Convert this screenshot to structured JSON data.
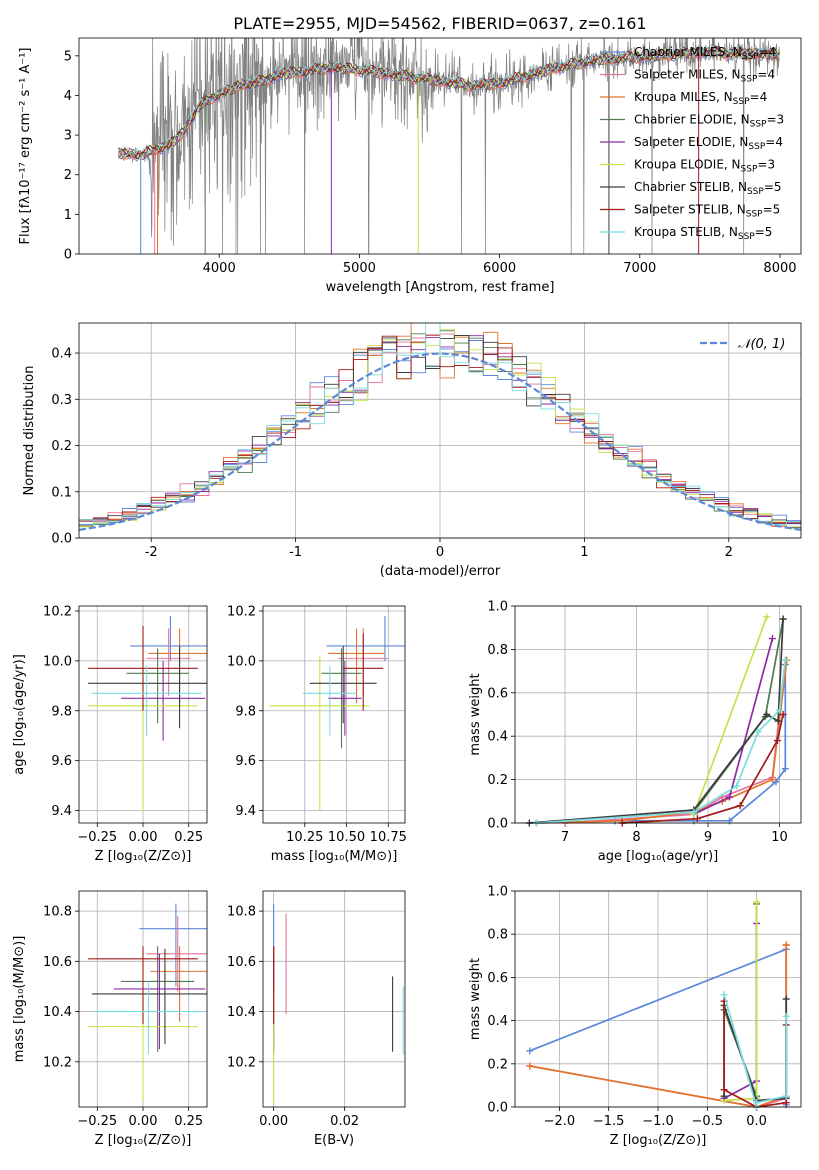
{
  "figure": {
    "title": "PLATE=2955, MJD=54562, FIBERID=0637, z=0.161"
  },
  "series": [
    {
      "name": "Chabrier MILES, N",
      "sub": "SSP",
      "suffix": "=4",
      "color": "#5b88d9"
    },
    {
      "name": "Salpeter MILES, N",
      "sub": "SSP",
      "suffix": "=4",
      "color": "#e8729a"
    },
    {
      "name": "Kroupa MILES, N",
      "sub": "SSP",
      "suffix": "=4",
      "color": "#e2742c"
    },
    {
      "name": "Chabrier ELODIE, N",
      "sub": "SSP",
      "suffix": "=3",
      "color": "#4f7a4f"
    },
    {
      "name": "Salpeter ELODIE, N",
      "sub": "SSP",
      "suffix": "=4",
      "color": "#8e2aa6"
    },
    {
      "name": "Kroupa ELODIE, N",
      "sub": "SSP",
      "suffix": "=3",
      "color": "#c5e34a"
    },
    {
      "name": "Chabrier STELIB, N",
      "sub": "SSP",
      "suffix": "=5",
      "color": "#3d3d3d"
    },
    {
      "name": "Salpeter STELIB, N",
      "sub": "SSP",
      "suffix": "=5",
      "color": "#a21a1a"
    },
    {
      "name": "Kroupa STELIB, N",
      "sub": "SSP",
      "suffix": "=5",
      "color": "#79dde0"
    }
  ],
  "chart_data": [
    {
      "id": "spectrum",
      "type": "line",
      "xlabel": "wavelength [Angstrom, rest frame]",
      "ylabel": "Flux [fλ10⁻¹⁷ erg cm⁻² s⁻¹ A⁻¹]",
      "xlim": [
        3000,
        8150
      ],
      "ylim": [
        0,
        5.45
      ],
      "xticks": [
        4000,
        5000,
        6000,
        7000,
        8000
      ],
      "yticks": [
        0,
        1,
        2,
        3,
        4,
        5
      ],
      "data_color": "#808080",
      "data_range": [
        3280,
        8000
      ],
      "continuum": {
        "x": [
          3280,
          3450,
          3550,
          3650,
          3750,
          3850,
          3950,
          4050,
          4150,
          4300,
          4450,
          4600,
          4800,
          5000,
          5200,
          5400,
          5600,
          5800,
          6000,
          6200,
          6400,
          6550,
          6700,
          6900,
          7100,
          7300,
          7500,
          7700,
          7900,
          8000
        ],
        "y": [
          2.55,
          2.5,
          2.65,
          2.75,
          3.1,
          3.7,
          3.95,
          4.1,
          4.25,
          4.35,
          4.55,
          4.6,
          4.7,
          4.65,
          4.55,
          4.45,
          4.35,
          4.25,
          4.3,
          4.5,
          4.7,
          4.8,
          4.9,
          4.95,
          5.0,
          5.05,
          5.1,
          5.05,
          5.05,
          5.0
        ]
      }
    },
    {
      "id": "residuals",
      "type": "histogram",
      "xlabel": "(data-model)/error",
      "ylabel": "Normed distribution",
      "xlim": [
        -2.5,
        2.5
      ],
      "ylim": [
        0,
        0.465
      ],
      "xticks": [
        -2,
        -1,
        0,
        1,
        2
      ],
      "yticks": [
        0.0,
        0.1,
        0.2,
        0.3,
        0.4
      ],
      "bin_width": 0.1,
      "gaussian_label": "𝒩(0, 1)",
      "gaussian_color": "#5b88d9",
      "legend": "top-right"
    },
    {
      "id": "age_vs_Z",
      "type": "errorbar",
      "xlabel": "Z [log₁₀(Z/Z⊙)]",
      "ylabel": "age  [log₁₀(age/yr)]",
      "xlim": [
        -0.35,
        0.35
      ],
      "ylim": [
        9.35,
        10.22
      ],
      "xticks": [
        -0.25,
        0.0,
        0.25
      ],
      "xticklabels": [
        "−0.25",
        "0.00",
        "0.25"
      ],
      "yticks": [
        9.4,
        9.6,
        9.8,
        10.0,
        10.2
      ],
      "points": [
        {
          "x": 0.15,
          "y": 10.06,
          "xerr": 0.22,
          "yerr": [
            0.06,
            0.12
          ]
        },
        {
          "x": 0.14,
          "y": 10.01,
          "xerr": 0.12,
          "yerr": [
            0.15,
            0.12
          ]
        },
        {
          "x": 0.2,
          "y": 10.03,
          "xerr": 0.17,
          "yerr": [
            0.2,
            0.1
          ]
        },
        {
          "x": 0.08,
          "y": 9.95,
          "xerr": 0.17,
          "yerr": [
            0.2,
            0.1
          ]
        },
        {
          "x": 0.11,
          "y": 9.85,
          "xerr": 0.23,
          "yerr": [
            0.17,
            0.15
          ]
        },
        {
          "x": 0.0,
          "y": 9.82,
          "xerr": 0.3,
          "yerr": [
            0.42,
            0.2
          ]
        },
        {
          "x": 0.2,
          "y": 9.91,
          "xerr": 0.5,
          "yerr": [
            0.18,
            0.15
          ]
        },
        {
          "x": 0.0,
          "y": 9.97,
          "xerr": 0.3,
          "yerr": [
            0.17,
            0.17
          ]
        },
        {
          "x": 0.02,
          "y": 9.87,
          "xerr": 0.3,
          "yerr": [
            0.17,
            0.11
          ]
        }
      ]
    },
    {
      "id": "age_vs_mass",
      "type": "errorbar",
      "xlabel": "mass [log₁₀(M/M⊙)]",
      "xlim": [
        10.0,
        10.85
      ],
      "ylim": [
        9.35,
        10.22
      ],
      "xticks": [
        10.25,
        10.5,
        10.75
      ],
      "xticklabels": [
        "10.25",
        "10.50",
        "10.75"
      ],
      "yticks": [
        9.4,
        9.6,
        9.8,
        10.0,
        10.2
      ],
      "points": [
        {
          "x": 10.73,
          "y": 10.06,
          "xerr": 0.35,
          "yerr": [
            0.06,
            0.12
          ]
        },
        {
          "x": 10.6,
          "y": 10.01,
          "xerr": 0.15,
          "yerr": [
            0.15,
            0.12
          ]
        },
        {
          "x": 10.56,
          "y": 10.03,
          "xerr": 0.17,
          "yerr": [
            0.2,
            0.1
          ]
        },
        {
          "x": 10.47,
          "y": 9.95,
          "xerr": 0.12,
          "yerr": [
            0.3,
            0.1
          ]
        },
        {
          "x": 10.49,
          "y": 9.85,
          "xerr": 0.1,
          "yerr": [
            0.15,
            0.15
          ]
        },
        {
          "x": 10.34,
          "y": 9.82,
          "xerr": 0.3,
          "yerr": [
            0.42,
            0.2
          ]
        },
        {
          "x": 10.48,
          "y": 9.91,
          "xerr": 0.2,
          "yerr": [
            0.16,
            0.15
          ]
        },
        {
          "x": 10.6,
          "y": 9.97,
          "xerr": 0.12,
          "yerr": [
            0.17,
            0.14
          ]
        },
        {
          "x": 10.4,
          "y": 9.87,
          "xerr": 0.16,
          "yerr": [
            0.17,
            0.11
          ]
        }
      ]
    },
    {
      "id": "weight_vs_age",
      "type": "line",
      "xlabel": "age  [log₁₀(age/yr)]",
      "ylabel": "mass weight",
      "xlim": [
        6.3,
        10.3
      ],
      "ylim": [
        0,
        1.0
      ],
      "xticks": [
        7,
        8,
        9,
        10
      ],
      "yticks": [
        0.0,
        0.2,
        0.4,
        0.6,
        0.8,
        1.0
      ],
      "lines": [
        {
          "x": [
            6.6,
            7.7,
            8.8,
            9.3,
            9.95,
            10.08,
            10.08
          ],
          "y": [
            0.0,
            0.01,
            0.01,
            0.01,
            0.19,
            0.25,
            0.73
          ]
        },
        {
          "x": [
            7.0,
            8.8,
            9.2,
            9.9,
            10.08
          ],
          "y": [
            0.0,
            0.04,
            0.12,
            0.21,
            0.75
          ]
        },
        {
          "x": [
            6.6,
            7.8,
            8.8,
            9.2,
            9.9,
            10.1
          ],
          "y": [
            0.0,
            0.01,
            0.05,
            0.1,
            0.2,
            0.75
          ]
        },
        {
          "x": [
            8.8,
            9.8,
            10.05
          ],
          "y": [
            0.05,
            0.49,
            0.94
          ]
        },
        {
          "x": [
            8.8,
            9.3,
            9.9
          ],
          "y": [
            0.04,
            0.12,
            0.85
          ]
        },
        {
          "x": [
            8.8,
            9.82
          ],
          "y": [
            0.04,
            0.95
          ]
        },
        {
          "x": [
            6.5,
            8.8,
            9.82,
            9.98,
            10.05
          ],
          "y": [
            0.0,
            0.06,
            0.5,
            0.47,
            0.94
          ]
        },
        {
          "x": [
            7.8,
            8.85,
            9.45,
            9.97,
            10.05
          ],
          "y": [
            0.0,
            0.02,
            0.08,
            0.38,
            0.5
          ]
        },
        {
          "x": [
            6.6,
            8.8,
            9.4,
            9.7,
            10.0,
            10.08
          ],
          "y": [
            0.0,
            0.05,
            0.17,
            0.42,
            0.52,
            0.75
          ]
        }
      ]
    },
    {
      "id": "mass_vs_Z",
      "type": "errorbar",
      "xlabel": "Z [log₁₀(Z/Z⊙)]",
      "ylabel": "mass [log₁₀(M/M⊙)]",
      "xlim": [
        -0.35,
        0.35
      ],
      "ylim": [
        10.02,
        10.88
      ],
      "xticks": [
        -0.25,
        0.0,
        0.25
      ],
      "xticklabels": [
        "−0.25",
        "0.00",
        "0.25"
      ],
      "yticks": [
        10.2,
        10.4,
        10.6,
        10.8
      ],
      "points": [
        {
          "x": 0.18,
          "y": 10.73,
          "xerr": 0.2,
          "yerr": [
            0.23,
            0.1
          ]
        },
        {
          "x": 0.19,
          "y": 10.63,
          "xerr": 0.17,
          "yerr": [
            0.15,
            0.15
          ]
        },
        {
          "x": 0.2,
          "y": 10.56,
          "xerr": 0.16,
          "yerr": [
            0.2,
            0.1
          ]
        },
        {
          "x": 0.08,
          "y": 10.52,
          "xerr": 0.2,
          "yerr": [
            0.28,
            0.14
          ]
        },
        {
          "x": 0.09,
          "y": 10.49,
          "xerr": 0.25,
          "yerr": [
            0.24,
            0.14
          ]
        },
        {
          "x": -0.0,
          "y": 10.34,
          "xerr": 0.3,
          "yerr": [
            0.3,
            0.16
          ]
        },
        {
          "x": 0.12,
          "y": 10.47,
          "xerr": 0.4,
          "yerr": [
            0.2,
            0.18
          ]
        },
        {
          "x": -0.0,
          "y": 10.61,
          "xerr": 0.3,
          "yerr": [
            0.26,
            0.05
          ]
        },
        {
          "x": 0.03,
          "y": 10.4,
          "xerr": 0.3,
          "yerr": [
            0.17,
            0.12
          ]
        }
      ]
    },
    {
      "id": "mass_vs_EBV",
      "type": "errorbar",
      "xlabel": "E(B-V)",
      "xlim": [
        -0.003,
        0.037
      ],
      "ylim": [
        10.02,
        10.88
      ],
      "xticks": [
        0.0,
        0.02
      ],
      "xticklabels": [
        "0.00",
        "0.02"
      ],
      "yticks": [
        10.2,
        10.4,
        10.6,
        10.8
      ],
      "points": [
        {
          "x": 0.0,
          "y": 10.73,
          "xerr": 0.0,
          "yerr": [
            0.23,
            0.1
          ]
        },
        {
          "x": 0.0035,
          "y": 10.63,
          "xerr": 0.0,
          "yerr": [
            0.24,
            0.16
          ]
        },
        {
          "x": 0.0,
          "y": 10.56,
          "xerr": 0.0,
          "yerr": [
            0.2,
            0.1
          ]
        },
        {
          "x": 0.0,
          "y": 10.52,
          "xerr": 0.0,
          "yerr": [
            0.28,
            0.14
          ]
        },
        {
          "x": 0.0,
          "y": 10.49,
          "xerr": 0.0,
          "yerr": [
            0.24,
            0.14
          ]
        },
        {
          "x": 0.0,
          "y": 10.34,
          "xerr": 0.0,
          "yerr": [
            0.31,
            0.16
          ]
        },
        {
          "x": 0.0335,
          "y": 10.39,
          "xerr": 0.0,
          "yerr": [
            0.15,
            0.15
          ]
        },
        {
          "x": 0.0,
          "y": 10.5,
          "xerr": 0.0,
          "yerr": [
            0.15,
            0.16
          ]
        },
        {
          "x": 0.0365,
          "y": 10.37,
          "xerr": 0.0,
          "yerr": [
            0.14,
            0.13
          ]
        }
      ]
    },
    {
      "id": "weight_vs_Z",
      "type": "line",
      "xlabel": "Z [log₁₀(Z/Z⊙)]",
      "ylabel": "mass weight",
      "xlim": [
        -2.45,
        0.45
      ],
      "ylim": [
        0,
        1.0
      ],
      "xticks": [
        -2.0,
        -1.5,
        -1.0,
        -0.5,
        0.0
      ],
      "xticklabels": [
        "−2.0",
        "−1.5",
        "−1.0",
        "−0.5",
        "0.0"
      ],
      "yticks": [
        0.0,
        0.2,
        0.4,
        0.6,
        0.8,
        1.0
      ],
      "lines": [
        {
          "x": [
            -2.3,
            0.3,
            0.3
          ],
          "y": [
            0.26,
            0.73,
            0.01
          ]
        },
        {
          "x": [
            -2.3,
            0.0,
            0.3,
            0.3
          ],
          "y": [
            0.19,
            0.0,
            0.04,
            0.75
          ]
        },
        {
          "x": [
            -2.3,
            0.0,
            0.3,
            0.3
          ],
          "y": [
            0.19,
            0.0,
            0.05,
            0.75
          ]
        },
        {
          "x": [
            -0.33,
            0.0,
            0.0
          ],
          "y": [
            0.45,
            0.05,
            0.94
          ]
        },
        {
          "x": [
            -0.33,
            0.0,
            0.0
          ],
          "y": [
            0.04,
            0.12,
            0.85
          ]
        },
        {
          "x": [
            -0.33,
            0.0,
            0.0
          ],
          "y": [
            0.03,
            0.04,
            0.95
          ]
        },
        {
          "x": [
            -0.33,
            -0.33,
            0.0,
            0.3,
            0.3
          ],
          "y": [
            0.05,
            0.47,
            0.03,
            0.04,
            0.5
          ]
        },
        {
          "x": [
            -0.33,
            -0.33,
            0.0,
            0.3,
            0.3
          ],
          "y": [
            0.49,
            0.08,
            0.0,
            0.02,
            0.38
          ]
        },
        {
          "x": [
            -0.33,
            0.0,
            0.0,
            0.3,
            0.3
          ],
          "y": [
            0.52,
            0.0,
            0.02,
            0.05,
            0.42
          ]
        }
      ]
    }
  ]
}
